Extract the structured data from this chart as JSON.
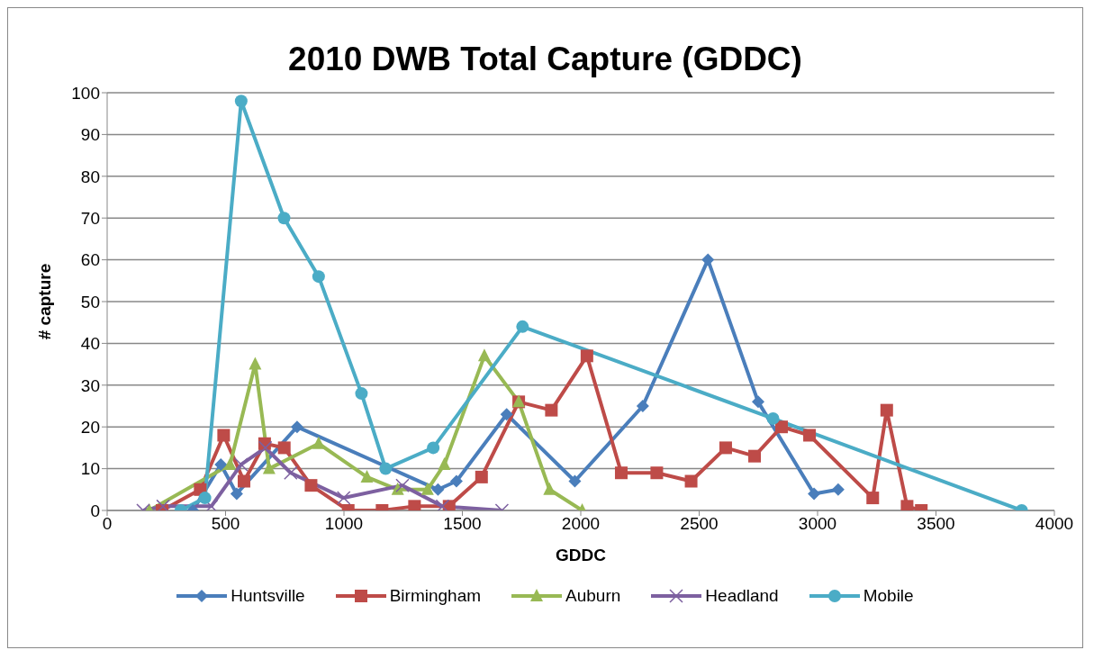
{
  "chart_data": {
    "type": "line",
    "title": "2010 DWB Total Capture (GDDC)",
    "xlabel": "GDDC",
    "ylabel": "# capture",
    "xlim": [
      0,
      4000
    ],
    "xticks": [
      0,
      500,
      1000,
      1500,
      2000,
      2500,
      3000,
      3500,
      4000
    ],
    "ylim": [
      0,
      100
    ],
    "yticks": [
      0,
      10,
      20,
      30,
      40,
      50,
      60,
      70,
      80,
      90,
      100
    ],
    "grid": "y",
    "legend": "bottom",
    "series": [
      {
        "name": "Huntsville",
        "color": "#4a7ebb",
        "marker": "diamond",
        "x": [
          362,
          480,
          547,
          802,
          1397,
          1475,
          1687,
          1975,
          2262,
          2537,
          2749,
          2985,
          3087
        ],
        "values": [
          0,
          11,
          4,
          20,
          5,
          7,
          23,
          7,
          25,
          60,
          26,
          4,
          5
        ]
      },
      {
        "name": "Birmingham",
        "color": "#be4b48",
        "marker": "square",
        "x": [
          232,
          393,
          492,
          578,
          665,
          748,
          861,
          1018,
          1161,
          1298,
          1444,
          1581,
          1738,
          1876,
          2026,
          2171,
          2321,
          2466,
          2612,
          2734,
          2848,
          2966,
          3233,
          3292,
          3378,
          3438
        ],
        "values": [
          0,
          5,
          18,
          7,
          16,
          15,
          6,
          0,
          0,
          1,
          1,
          8,
          26,
          24,
          37,
          9,
          9,
          7,
          15,
          13,
          20,
          18,
          3,
          24,
          1,
          0
        ]
      },
      {
        "name": "Auburn",
        "color": "#98b954",
        "marker": "triangle",
        "x": [
          178,
          519,
          625,
          684,
          893,
          1097,
          1227,
          1353,
          1424,
          1593,
          1738,
          1868,
          2006
        ],
        "values": [
          0,
          11,
          35,
          10,
          16,
          8,
          5,
          5,
          11,
          37,
          26,
          5,
          0
        ]
      },
      {
        "name": "Headland",
        "color": "#7d60a0",
        "marker": "cross",
        "x": [
          152,
          236,
          440,
          566,
          668,
          775,
          999,
          1247,
          1416,
          1667
        ],
        "values": [
          0,
          1,
          1,
          11,
          15,
          9,
          3,
          6,
          1,
          0
        ]
      },
      {
        "name": "Mobile",
        "color": "#4bacc6",
        "marker": "circle",
        "x": [
          311,
          413,
          566,
          747,
          893,
          1074,
          1176,
          1377,
          1754,
          2812,
          3862
        ],
        "values": [
          0,
          3,
          98,
          70,
          56,
          28,
          10,
          15,
          44,
          22,
          0
        ]
      }
    ]
  }
}
